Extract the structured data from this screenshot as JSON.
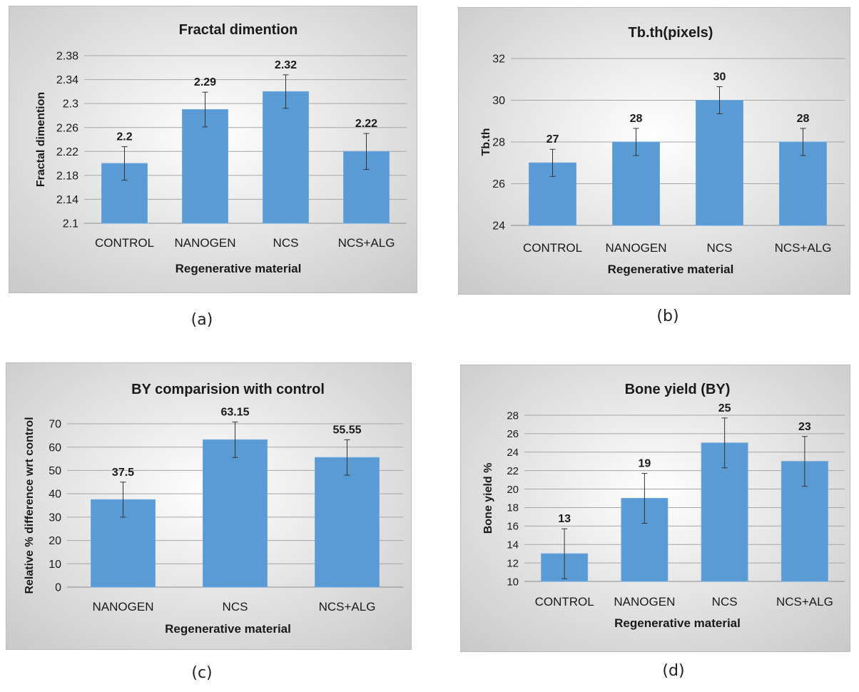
{
  "colors": {
    "bar": "#5b9bd5",
    "bar_edge": "#6fa8dc",
    "grid": "#a6a6a6",
    "panel_light": "#ffffff",
    "panel_dark": "#c8c8c8",
    "text": "#1a1a1a"
  },
  "captions": [
    "(a)",
    "(b)",
    "(c)",
    "(d)"
  ],
  "chart_data": [
    {
      "type": "bar",
      "title": "Fractal dimention",
      "xlabel": "Regenerative material",
      "ylabel": "Fractal dimention",
      "categories": [
        "CONTROL",
        "NANOGEN",
        "NCS",
        "NCS+ALG"
      ],
      "values": [
        2.2,
        2.29,
        2.32,
        2.22
      ],
      "errors": [
        0.028,
        0.029,
        0.028,
        0.03
      ],
      "data_labels": [
        "2.2",
        "2.29",
        "2.32",
        "2.22"
      ],
      "ylim": [
        2.1,
        2.38
      ],
      "yticks": [
        2.1,
        2.14,
        2.18,
        2.22,
        2.26,
        2.3,
        2.34,
        2.38
      ],
      "ytick_labels": [
        "2.1",
        "2.14",
        "2.18",
        "2.22",
        "2.26",
        "2.3",
        "2.34",
        "2.38"
      ],
      "grid": true
    },
    {
      "type": "bar",
      "title": "Tb.th(pixels)",
      "xlabel": "Regenerative material",
      "ylabel": "Tb.th",
      "categories": [
        "CONTROL",
        "NANOGEN",
        "NCS",
        "NCS+ALG"
      ],
      "values": [
        27,
        28,
        30,
        28
      ],
      "errors": [
        0.65,
        0.65,
        0.65,
        0.65
      ],
      "data_labels": [
        "27",
        "28",
        "30",
        "28"
      ],
      "ylim": [
        24,
        32
      ],
      "yticks": [
        24,
        26,
        28,
        30,
        32
      ],
      "ytick_labels": [
        "24",
        "26",
        "28",
        "30",
        "32"
      ],
      "grid": true
    },
    {
      "type": "bar",
      "title": "BY comparision with control",
      "xlabel": "Regenerative material",
      "ylabel": "Relative % difference wrt control",
      "categories": [
        "NANOGEN",
        "NCS",
        "NCS+ALG"
      ],
      "values": [
        37.5,
        63.15,
        55.55
      ],
      "errors": [
        7.5,
        7.6,
        7.6
      ],
      "data_labels": [
        "37.5",
        "63.15",
        "55.55"
      ],
      "ylim": [
        0,
        70
      ],
      "yticks": [
        0,
        10,
        20,
        30,
        40,
        50,
        60,
        70
      ],
      "ytick_labels": [
        "0",
        "10",
        "20",
        "30",
        "40",
        "50",
        "60",
        "70"
      ],
      "grid": true
    },
    {
      "type": "bar",
      "title": "Bone yield (BY)",
      "xlabel": "Regenerative material",
      "ylabel": "Bone yield  %",
      "categories": [
        "CONTROL",
        "NANOGEN",
        "NCS",
        "NCS+ALG"
      ],
      "values": [
        13,
        19,
        25,
        23
      ],
      "errors": [
        2.7,
        2.7,
        2.7,
        2.7
      ],
      "data_labels": [
        "13",
        "19",
        "25",
        "23"
      ],
      "ylim": [
        10,
        28
      ],
      "yticks": [
        10,
        12,
        14,
        16,
        18,
        20,
        22,
        24,
        26,
        28
      ],
      "ytick_labels": [
        "10",
        "12",
        "14",
        "16",
        "18",
        "20",
        "22",
        "24",
        "26",
        "28"
      ],
      "grid": true
    }
  ]
}
